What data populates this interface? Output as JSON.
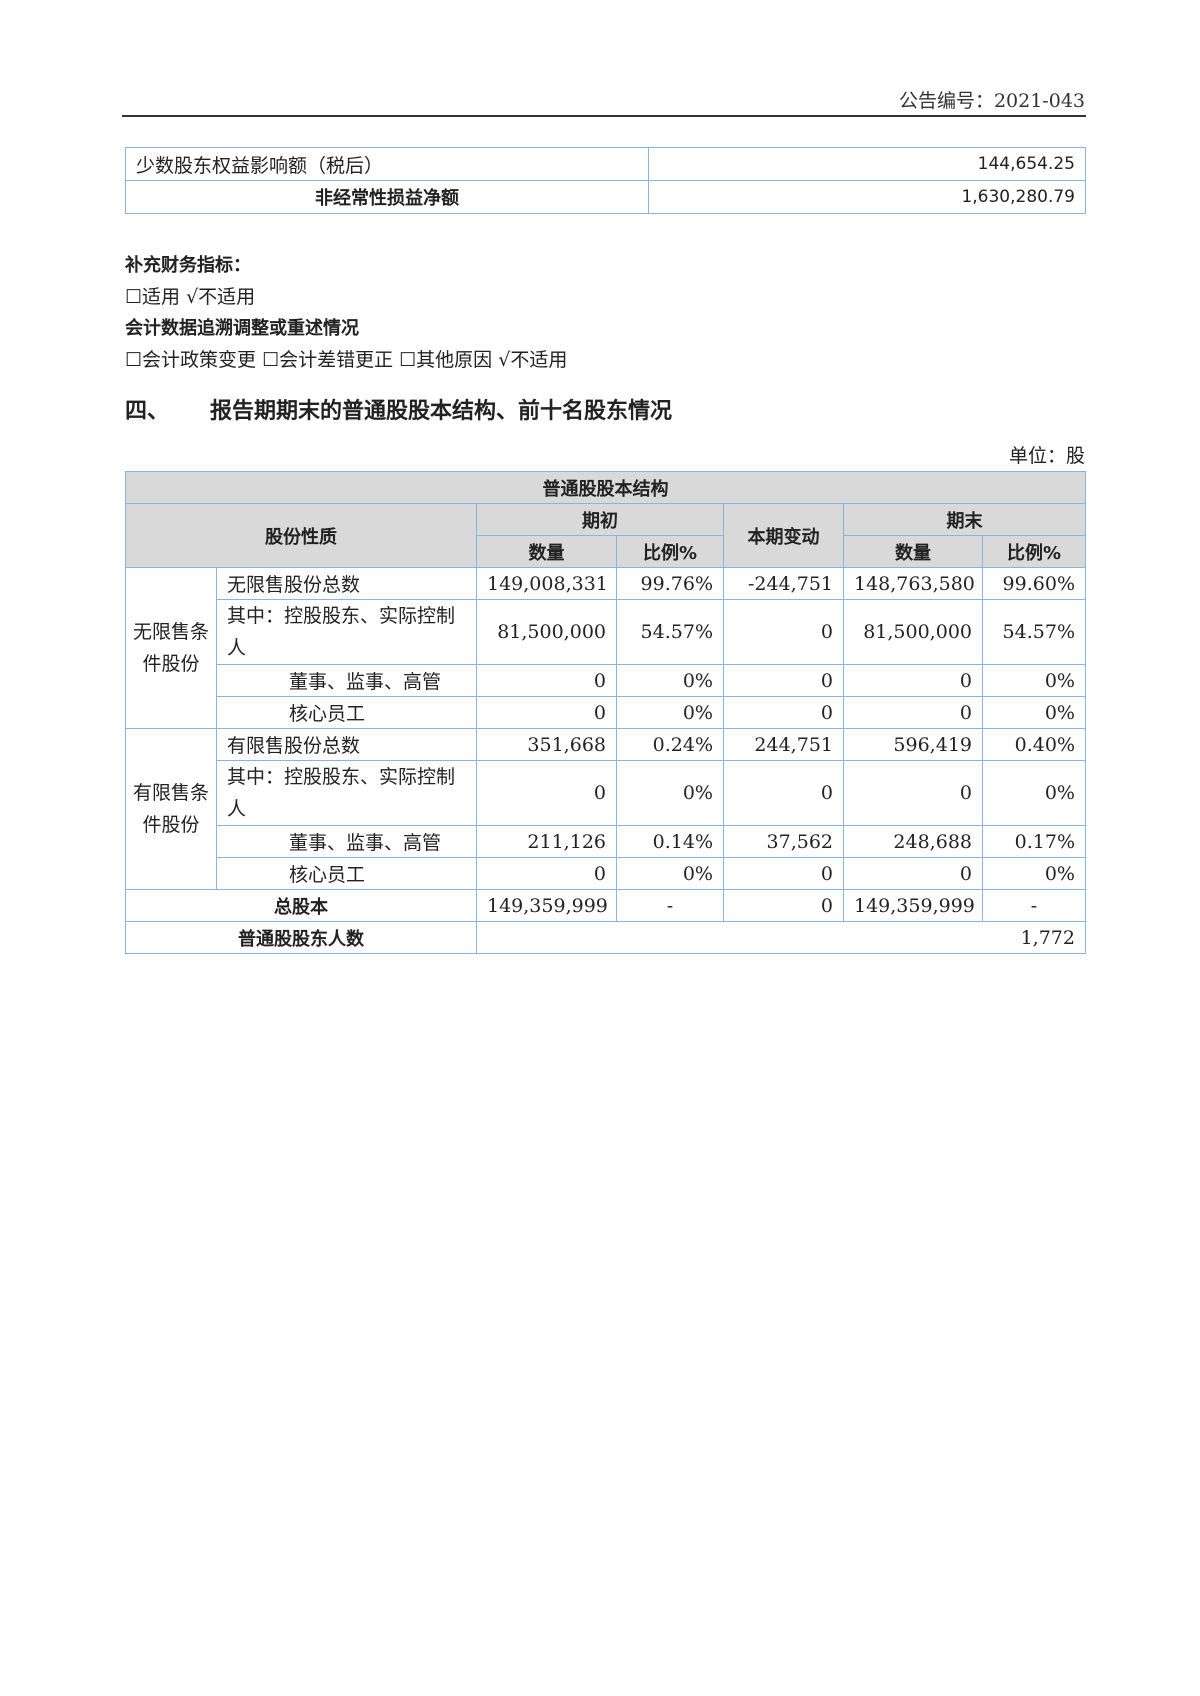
{
  "header": {
    "doc_number": "公告编号：2021-043"
  },
  "summary_table": {
    "rows": [
      {
        "label": "少数股东权益影响额（税后）",
        "value": "144,654.25"
      },
      {
        "label": "非经常性损益净额",
        "value": "1,630,280.79"
      }
    ]
  },
  "supplementary": {
    "title": "补充财务指标：",
    "options": "☐适用 √不适用"
  },
  "restatement": {
    "title": "会计数据追溯调整或重述情况",
    "options": "☐会计政策变更 ☐会计差错更正 ☐其他原因 √不适用"
  },
  "section": {
    "number": "四、",
    "title": "报告期期末的普通股股本结构、前十名股东情况"
  },
  "unit": "单位：股",
  "share_table": {
    "title": "普通股股本结构",
    "col_nature": "股份性质",
    "col_begin": "期初",
    "col_change": "本期变动",
    "col_end": "期末",
    "col_qty": "数量",
    "col_ratio": "比例%",
    "groups": [
      {
        "name": "无限售条件股份",
        "rows": [
          {
            "label": "无限售股份总数",
            "b_qty": "149,008,331",
            "b_ratio": "99.76%",
            "change": "-244,751",
            "e_qty": "148,763,580",
            "e_ratio": "99.60%"
          },
          {
            "label": "其中：控股股东、实际控制人",
            "b_qty": "81,500,000",
            "b_ratio": "54.57%",
            "change": "0",
            "e_qty": "81,500,000",
            "e_ratio": "54.57%"
          },
          {
            "label": "董事、监事、高管",
            "b_qty": "0",
            "b_ratio": "0%",
            "change": "0",
            "e_qty": "0",
            "e_ratio": "0%"
          },
          {
            "label": "核心员工",
            "b_qty": "0",
            "b_ratio": "0%",
            "change": "0",
            "e_qty": "0",
            "e_ratio": "0%"
          }
        ]
      },
      {
        "name": "有限售条件股份",
        "rows": [
          {
            "label": "有限售股份总数",
            "b_qty": "351,668",
            "b_ratio": "0.24%",
            "change": "244,751",
            "e_qty": "596,419",
            "e_ratio": "0.40%"
          },
          {
            "label": "其中：控股股东、实际控制人",
            "b_qty": "0",
            "b_ratio": "0%",
            "change": "0",
            "e_qty": "0",
            "e_ratio": "0%"
          },
          {
            "label": "董事、监事、高管",
            "b_qty": "211,126",
            "b_ratio": "0.14%",
            "change": "37,562",
            "e_qty": "248,688",
            "e_ratio": "0.17%"
          },
          {
            "label": "核心员工",
            "b_qty": "0",
            "b_ratio": "0%",
            "change": "0",
            "e_qty": "0",
            "e_ratio": "0%"
          }
        ]
      }
    ],
    "total": {
      "label": "总股本",
      "b_qty": "149,359,999",
      "b_ratio": "-",
      "change": "0",
      "e_qty": "149,359,999",
      "e_ratio": "-"
    },
    "holders": {
      "label": "普通股股东人数",
      "value": "1,772"
    }
  }
}
